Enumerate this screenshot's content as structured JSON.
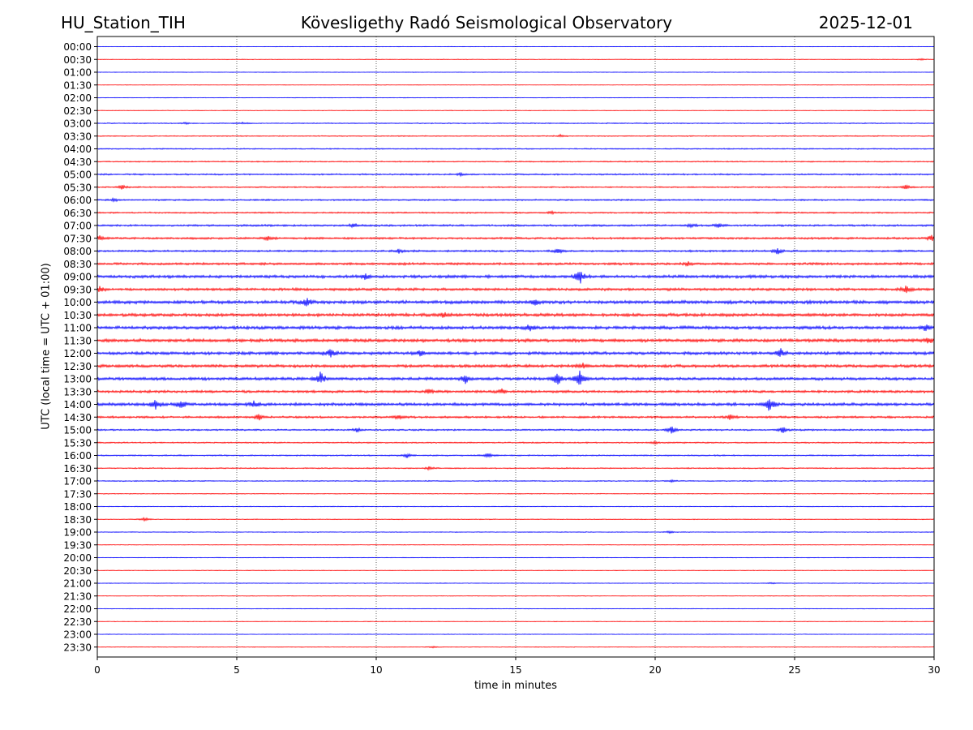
{
  "chart_data": {
    "type": "line",
    "title_left": "HU_Station_TIH",
    "title_center": "Kövesligethy Radó Seismological Observatory",
    "title_right": "2025-12-01",
    "xlabel": "time in minutes",
    "ylabel": "UTC (local time = UTC + 01:00)",
    "xlim": [
      0,
      30
    ],
    "xticks": [
      0,
      5,
      10,
      15,
      20,
      25,
      30
    ],
    "grid_x": true,
    "colors": {
      "even": "#0000ff",
      "odd": "#ff0000"
    },
    "series": [
      {
        "name": "00:00",
        "amplitude": 0.3
      },
      {
        "name": "00:30",
        "amplitude": 0.4,
        "events": [
          {
            "t": 29.5,
            "a": 1.2
          }
        ]
      },
      {
        "name": "01:00",
        "amplitude": 0.3
      },
      {
        "name": "01:30",
        "amplitude": 0.3
      },
      {
        "name": "02:00",
        "amplitude": 0.4
      },
      {
        "name": "02:30",
        "amplitude": 0.4
      },
      {
        "name": "03:00",
        "amplitude": 0.7,
        "events": [
          {
            "t": 3.2,
            "a": 1.5
          },
          {
            "t": 5.2,
            "a": 1.2
          }
        ]
      },
      {
        "name": "03:30",
        "amplitude": 0.7,
        "events": [
          {
            "t": 16.6,
            "a": 1.5
          }
        ]
      },
      {
        "name": "04:00",
        "amplitude": 0.8
      },
      {
        "name": "04:30",
        "amplitude": 0.8
      },
      {
        "name": "05:00",
        "amplitude": 1.0,
        "events": [
          {
            "t": 13.0,
            "a": 1.8
          }
        ]
      },
      {
        "name": "05:30",
        "amplitude": 0.9,
        "events": [
          {
            "t": 0.9,
            "a": 2.5
          },
          {
            "t": 29.0,
            "a": 2.5
          }
        ]
      },
      {
        "name": "06:00",
        "amplitude": 1.1,
        "events": [
          {
            "t": 0.6,
            "a": 2.0
          }
        ]
      },
      {
        "name": "06:30",
        "amplitude": 1.0,
        "events": [
          {
            "t": 16.3,
            "a": 1.8
          }
        ]
      },
      {
        "name": "07:00",
        "amplitude": 1.3,
        "events": [
          {
            "t": 9.2,
            "a": 2.5
          },
          {
            "t": 21.3,
            "a": 2.2
          },
          {
            "t": 22.3,
            "a": 2.2
          }
        ]
      },
      {
        "name": "07:30",
        "amplitude": 1.4,
        "events": [
          {
            "t": 0.1,
            "a": 3.0
          },
          {
            "t": 6.1,
            "a": 2.5
          },
          {
            "t": 29.9,
            "a": 4.0
          }
        ]
      },
      {
        "name": "08:00",
        "amplitude": 1.3,
        "events": [
          {
            "t": 10.8,
            "a": 2.5
          },
          {
            "t": 16.5,
            "a": 3.0
          },
          {
            "t": 24.4,
            "a": 3.5
          }
        ]
      },
      {
        "name": "08:30",
        "amplitude": 1.6,
        "events": [
          {
            "t": 21.2,
            "a": 2.0
          }
        ]
      },
      {
        "name": "09:00",
        "amplitude": 2.0,
        "events": [
          {
            "t": 9.6,
            "a": 3.5
          },
          {
            "t": 17.3,
            "a": 9.0
          }
        ]
      },
      {
        "name": "09:30",
        "amplitude": 1.8,
        "events": [
          {
            "t": 0.1,
            "a": 3.0
          },
          {
            "t": 29.0,
            "a": 4.0
          }
        ]
      },
      {
        "name": "10:00",
        "amplitude": 2.2,
        "events": [
          {
            "t": 7.5,
            "a": 5.0
          },
          {
            "t": 15.7,
            "a": 3.0
          }
        ]
      },
      {
        "name": "10:30",
        "amplitude": 2.1,
        "events": [
          {
            "t": 12.4,
            "a": 3.0
          }
        ]
      },
      {
        "name": "11:00",
        "amplitude": 2.2,
        "events": [
          {
            "t": 15.5,
            "a": 3.5
          },
          {
            "t": 29.7,
            "a": 3.0
          }
        ]
      },
      {
        "name": "11:30",
        "amplitude": 2.2,
        "events": [
          {
            "t": 29.8,
            "a": 3.5
          }
        ]
      },
      {
        "name": "12:00",
        "amplitude": 2.0,
        "events": [
          {
            "t": 8.4,
            "a": 6.0
          },
          {
            "t": 11.6,
            "a": 3.5
          },
          {
            "t": 24.5,
            "a": 5.0
          }
        ]
      },
      {
        "name": "12:30",
        "amplitude": 2.0,
        "events": [
          {
            "t": 17.4,
            "a": 3.0
          }
        ]
      },
      {
        "name": "13:00",
        "amplitude": 2.0,
        "events": [
          {
            "t": 8.0,
            "a": 8.0
          },
          {
            "t": 13.2,
            "a": 5.0
          },
          {
            "t": 16.5,
            "a": 9.0
          },
          {
            "t": 17.3,
            "a": 10.0
          }
        ]
      },
      {
        "name": "13:30",
        "amplitude": 1.7,
        "events": [
          {
            "t": 11.9,
            "a": 3.0
          },
          {
            "t": 14.5,
            "a": 2.8
          }
        ]
      },
      {
        "name": "14:00",
        "amplitude": 2.0,
        "events": [
          {
            "t": 2.1,
            "a": 6.0
          },
          {
            "t": 3.0,
            "a": 5.0
          },
          {
            "t": 5.6,
            "a": 3.5
          },
          {
            "t": 24.1,
            "a": 9.0
          }
        ]
      },
      {
        "name": "14:30",
        "amplitude": 1.4,
        "events": [
          {
            "t": 5.8,
            "a": 4.5
          },
          {
            "t": 10.8,
            "a": 3.0
          },
          {
            "t": 22.7,
            "a": 3.0
          }
        ]
      },
      {
        "name": "15:00",
        "amplitude": 1.1,
        "events": [
          {
            "t": 9.3,
            "a": 2.5
          },
          {
            "t": 20.6,
            "a": 5.5
          },
          {
            "t": 24.6,
            "a": 4.0
          }
        ]
      },
      {
        "name": "15:30",
        "amplitude": 0.9,
        "events": [
          {
            "t": 20.0,
            "a": 1.5
          }
        ]
      },
      {
        "name": "16:00",
        "amplitude": 0.9,
        "events": [
          {
            "t": 11.1,
            "a": 2.8
          },
          {
            "t": 14.0,
            "a": 2.5
          }
        ]
      },
      {
        "name": "16:30",
        "amplitude": 0.8,
        "events": [
          {
            "t": 11.9,
            "a": 1.8
          }
        ]
      },
      {
        "name": "17:00",
        "amplitude": 0.7,
        "events": [
          {
            "t": 20.6,
            "a": 1.5
          }
        ]
      },
      {
        "name": "17:30",
        "amplitude": 0.5
      },
      {
        "name": "18:00",
        "amplitude": 0.5
      },
      {
        "name": "18:30",
        "amplitude": 0.5,
        "events": [
          {
            "t": 1.7,
            "a": 2.5
          }
        ]
      },
      {
        "name": "19:00",
        "amplitude": 0.5,
        "events": [
          {
            "t": 20.5,
            "a": 1.5
          }
        ]
      },
      {
        "name": "19:30",
        "amplitude": 0.4
      },
      {
        "name": "20:00",
        "amplitude": 0.4
      },
      {
        "name": "20:30",
        "amplitude": 0.4
      },
      {
        "name": "21:00",
        "amplitude": 0.4,
        "events": [
          {
            "t": 24.2,
            "a": 1.2
          }
        ]
      },
      {
        "name": "21:30",
        "amplitude": 0.4
      },
      {
        "name": "22:00",
        "amplitude": 0.4
      },
      {
        "name": "22:30",
        "amplitude": 0.4
      },
      {
        "name": "23:00",
        "amplitude": 0.4
      },
      {
        "name": "23:30",
        "amplitude": 0.4,
        "events": [
          {
            "t": 12.0,
            "a": 1.2
          }
        ]
      }
    ]
  }
}
